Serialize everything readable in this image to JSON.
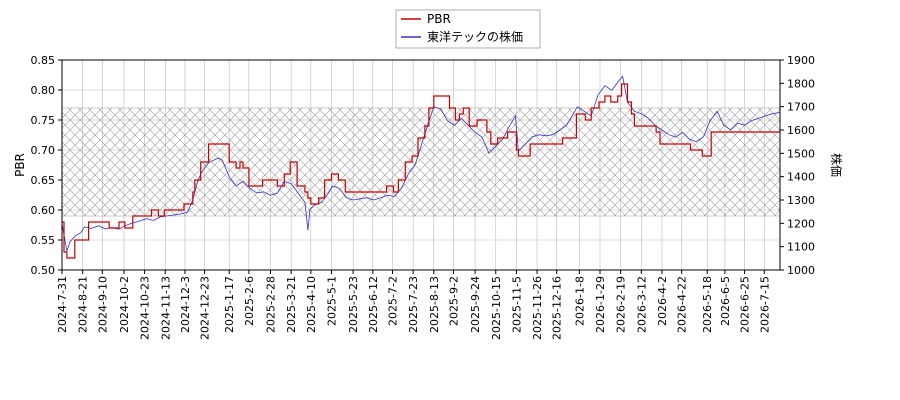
{
  "chart_data": {
    "type": "line",
    "legend": {
      "placement": "top-center",
      "entries": [
        "PBR",
        "東洋テックの株価"
      ]
    },
    "y_left": {
      "label": "PBR",
      "range": [
        0.5,
        0.85
      ],
      "ticks": [
        "0.50",
        "0.55",
        "0.60",
        "0.65",
        "0.70",
        "0.75",
        "0.80",
        "0.85"
      ]
    },
    "y_right": {
      "label": "株価",
      "range": [
        1000,
        1900
      ],
      "ticks": [
        "1000",
        "1100",
        "1200",
        "1300",
        "1400",
        "1500",
        "1600",
        "1700",
        "1800",
        "1900"
      ]
    },
    "x_range": [
      "2024-07-31",
      "2026-07-31"
    ],
    "x_ticks": [
      "2024-7-31",
      "2024-8-21",
      "2024-9-10",
      "2024-10-2",
      "2024-10-23",
      "2024-11-13",
      "2024-12-3",
      "2024-12-23",
      "2025-1-17",
      "2025-2-6",
      "2025-2-28",
      "2025-3-21",
      "2025-4-10",
      "2025-5-1",
      "2025-5-23",
      "2025-6-12",
      "2025-7-2",
      "2025-7-23",
      "2025-8-13",
      "2025-9-2",
      "2025-9-24",
      "2025-10-15",
      "2025-11-5",
      "2025-11-26",
      "2025-12-16",
      "2026-1-8",
      "2026-1-29",
      "2026-2-19",
      "2026-3-12",
      "2026-4-2",
      "2026-4-22",
      "2026-5-18",
      "2026-6-5",
      "2026-6-25",
      "2026-7-15"
    ],
    "grid": true,
    "band": {
      "axis": "left",
      "range": [
        0.59,
        0.77
      ],
      "pattern": "crosshatch"
    },
    "colors": {
      "pbr": "#cc0000",
      "price": "#3333cc",
      "grid": "#bbbbbb",
      "band": "#999999"
    },
    "series": [
      {
        "name": "PBR",
        "axis": "left",
        "step": true,
        "points": [
          [
            "2024-07-31",
            0.58
          ],
          [
            "2024-08-02",
            0.53
          ],
          [
            "2024-08-05",
            0.52
          ],
          [
            "2024-08-13",
            0.55
          ],
          [
            "2024-08-27",
            0.58
          ],
          [
            "2024-09-17",
            0.57
          ],
          [
            "2024-09-27",
            0.58
          ],
          [
            "2024-10-03",
            0.57
          ],
          [
            "2024-10-11",
            0.59
          ],
          [
            "2024-10-30",
            0.6
          ],
          [
            "2024-11-06",
            0.59
          ],
          [
            "2024-11-12",
            0.6
          ],
          [
            "2024-11-26",
            0.6
          ],
          [
            "2024-12-02",
            0.61
          ],
          [
            "2024-12-11",
            0.63
          ],
          [
            "2024-12-13",
            0.65
          ],
          [
            "2024-12-19",
            0.68
          ],
          [
            "2024-12-27",
            0.71
          ],
          [
            "2025-01-17",
            0.68
          ],
          [
            "2025-01-24",
            0.67
          ],
          [
            "2025-01-28",
            0.68
          ],
          [
            "2025-01-31",
            0.67
          ],
          [
            "2025-02-06",
            0.64
          ],
          [
            "2025-02-20",
            0.65
          ],
          [
            "2025-03-07",
            0.64
          ],
          [
            "2025-03-14",
            0.66
          ],
          [
            "2025-03-20",
            0.68
          ],
          [
            "2025-03-27",
            0.64
          ],
          [
            "2025-04-04",
            0.63
          ],
          [
            "2025-04-07",
            0.62
          ],
          [
            "2025-04-10",
            0.61
          ],
          [
            "2025-04-18",
            0.62
          ],
          [
            "2025-04-24",
            0.65
          ],
          [
            "2025-05-01",
            0.66
          ],
          [
            "2025-05-08",
            0.65
          ],
          [
            "2025-05-15",
            0.63
          ],
          [
            "2025-06-18",
            0.63
          ],
          [
            "2025-06-26",
            0.64
          ],
          [
            "2025-07-03",
            0.63
          ],
          [
            "2025-07-08",
            0.65
          ],
          [
            "2025-07-15",
            0.68
          ],
          [
            "2025-07-22",
            0.69
          ],
          [
            "2025-07-28",
            0.72
          ],
          [
            "2025-08-04",
            0.74
          ],
          [
            "2025-08-08",
            0.77
          ],
          [
            "2025-08-13",
            0.79
          ],
          [
            "2025-08-29",
            0.77
          ],
          [
            "2025-09-04",
            0.75
          ],
          [
            "2025-09-08",
            0.76
          ],
          [
            "2025-09-12",
            0.77
          ],
          [
            "2025-09-18",
            0.74
          ],
          [
            "2025-09-26",
            0.75
          ],
          [
            "2025-10-06",
            0.73
          ],
          [
            "2025-10-10",
            0.71
          ],
          [
            "2025-10-17",
            0.72
          ],
          [
            "2025-10-27",
            0.73
          ],
          [
            "2025-11-05",
            0.7
          ],
          [
            "2025-11-07",
            0.69
          ],
          [
            "2025-11-19",
            0.71
          ],
          [
            "2025-12-22",
            0.72
          ],
          [
            "2026-01-05",
            0.76
          ],
          [
            "2026-01-14",
            0.75
          ],
          [
            "2026-01-20",
            0.77
          ],
          [
            "2026-01-28",
            0.78
          ],
          [
            "2026-02-03",
            0.79
          ],
          [
            "2026-02-09",
            0.78
          ],
          [
            "2026-02-16",
            0.79
          ],
          [
            "2026-02-20",
            0.81
          ],
          [
            "2026-02-26",
            0.78
          ],
          [
            "2026-03-02",
            0.76
          ],
          [
            "2026-03-05",
            0.74
          ],
          [
            "2026-03-27",
            0.73
          ],
          [
            "2026-03-31",
            0.71
          ],
          [
            "2026-05-01",
            0.7
          ],
          [
            "2026-05-13",
            0.69
          ],
          [
            "2026-05-22",
            0.73
          ],
          [
            "2026-07-31",
            0.73
          ]
        ]
      },
      {
        "name": "東洋テックの株価",
        "axis": "right",
        "step": false,
        "points": [
          [
            "2024-07-31",
            1200
          ],
          [
            "2024-08-02",
            1150
          ],
          [
            "2024-08-05",
            1080
          ],
          [
            "2024-08-08",
            1120
          ],
          [
            "2024-08-13",
            1145
          ],
          [
            "2024-08-19",
            1160
          ],
          [
            "2024-08-23",
            1185
          ],
          [
            "2024-08-30",
            1178
          ],
          [
            "2024-09-06",
            1190
          ],
          [
            "2024-09-13",
            1176
          ],
          [
            "2024-09-20",
            1182
          ],
          [
            "2024-09-27",
            1175
          ],
          [
            "2024-10-03",
            1190
          ],
          [
            "2024-10-10",
            1200
          ],
          [
            "2024-10-18",
            1210
          ],
          [
            "2024-10-25",
            1220
          ],
          [
            "2024-11-01",
            1212
          ],
          [
            "2024-11-08",
            1228
          ],
          [
            "2024-11-15",
            1232
          ],
          [
            "2024-11-22",
            1236
          ],
          [
            "2024-11-29",
            1240
          ],
          [
            "2024-12-06",
            1250
          ],
          [
            "2024-12-11",
            1300
          ],
          [
            "2024-12-16",
            1380
          ],
          [
            "2024-12-20",
            1420
          ],
          [
            "2024-12-27",
            1460
          ],
          [
            "2025-01-06",
            1480
          ],
          [
            "2025-01-10",
            1470
          ],
          [
            "2025-01-17",
            1400
          ],
          [
            "2025-01-24",
            1360
          ],
          [
            "2025-01-31",
            1380
          ],
          [
            "2025-02-07",
            1350
          ],
          [
            "2025-02-14",
            1330
          ],
          [
            "2025-02-21",
            1335
          ],
          [
            "2025-02-28",
            1320
          ],
          [
            "2025-03-07",
            1330
          ],
          [
            "2025-03-14",
            1380
          ],
          [
            "2025-03-21",
            1370
          ],
          [
            "2025-03-28",
            1330
          ],
          [
            "2025-04-04",
            1290
          ],
          [
            "2025-04-07",
            1170
          ],
          [
            "2025-04-09",
            1260
          ],
          [
            "2025-04-14",
            1280
          ],
          [
            "2025-04-21",
            1290
          ],
          [
            "2025-04-28",
            1330
          ],
          [
            "2025-05-02",
            1360
          ],
          [
            "2025-05-09",
            1350
          ],
          [
            "2025-05-16",
            1310
          ],
          [
            "2025-05-23",
            1300
          ],
          [
            "2025-05-30",
            1305
          ],
          [
            "2025-06-06",
            1310
          ],
          [
            "2025-06-13",
            1300
          ],
          [
            "2025-06-20",
            1310
          ],
          [
            "2025-06-27",
            1320
          ],
          [
            "2025-07-04",
            1315
          ],
          [
            "2025-07-11",
            1350
          ],
          [
            "2025-07-18",
            1410
          ],
          [
            "2025-07-25",
            1450
          ],
          [
            "2025-07-31",
            1530
          ],
          [
            "2025-08-06",
            1610
          ],
          [
            "2025-08-13",
            1700
          ],
          [
            "2025-08-20",
            1690
          ],
          [
            "2025-08-27",
            1640
          ],
          [
            "2025-09-03",
            1620
          ],
          [
            "2025-09-10",
            1650
          ],
          [
            "2025-09-17",
            1620
          ],
          [
            "2025-09-24",
            1590
          ],
          [
            "2025-10-01",
            1570
          ],
          [
            "2025-10-08",
            1500
          ],
          [
            "2025-10-15",
            1530
          ],
          [
            "2025-10-22",
            1560
          ],
          [
            "2025-10-28",
            1610
          ],
          [
            "2025-11-04",
            1660
          ],
          [
            "2025-11-07",
            1510
          ],
          [
            "2025-11-14",
            1540
          ],
          [
            "2025-11-21",
            1570
          ],
          [
            "2025-11-28",
            1580
          ],
          [
            "2025-12-05",
            1575
          ],
          [
            "2025-12-12",
            1580
          ],
          [
            "2025-12-19",
            1600
          ],
          [
            "2025-12-26",
            1620
          ],
          [
            "2026-01-06",
            1700
          ],
          [
            "2026-01-13",
            1680
          ],
          [
            "2026-01-20",
            1660
          ],
          [
            "2026-01-27",
            1750
          ],
          [
            "2026-02-03",
            1790
          ],
          [
            "2026-02-10",
            1770
          ],
          [
            "2026-02-17",
            1810
          ],
          [
            "2026-02-21",
            1830
          ],
          [
            "2026-02-26",
            1720
          ],
          [
            "2026-03-05",
            1680
          ],
          [
            "2026-03-12",
            1670
          ],
          [
            "2026-03-19",
            1650
          ],
          [
            "2026-03-26",
            1620
          ],
          [
            "2026-04-02",
            1600
          ],
          [
            "2026-04-09",
            1580
          ],
          [
            "2026-04-16",
            1570
          ],
          [
            "2026-04-23",
            1590
          ],
          [
            "2026-04-30",
            1560
          ],
          [
            "2026-05-07",
            1550
          ],
          [
            "2026-05-14",
            1570
          ],
          [
            "2026-05-21",
            1640
          ],
          [
            "2026-05-28",
            1680
          ],
          [
            "2026-06-04",
            1620
          ],
          [
            "2026-06-11",
            1600
          ],
          [
            "2026-06-18",
            1630
          ],
          [
            "2026-06-25",
            1620
          ],
          [
            "2026-07-02",
            1640
          ],
          [
            "2026-07-09",
            1650
          ],
          [
            "2026-07-16",
            1660
          ],
          [
            "2026-07-23",
            1670
          ],
          [
            "2026-07-31",
            1675
          ]
        ]
      }
    ]
  }
}
